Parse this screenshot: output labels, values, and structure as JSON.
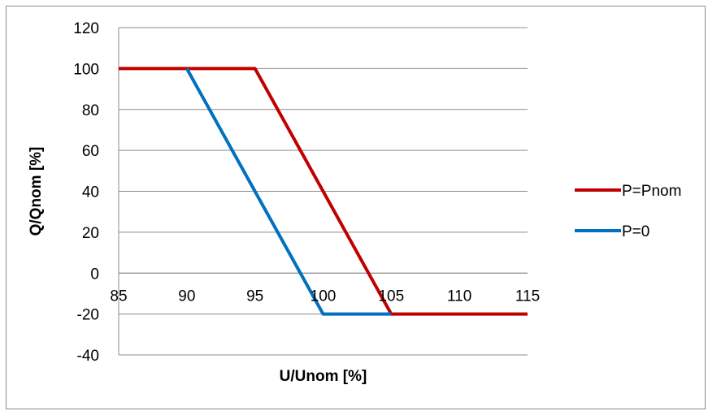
{
  "chart_data": {
    "type": "line",
    "xlabel": "U/Unom [%]",
    "ylabel": "Q/Qnom [%]",
    "xlim": [
      85,
      115
    ],
    "ylim": [
      -40,
      120
    ],
    "x_ticks": [
      "85",
      "90",
      "95",
      "100",
      "105",
      "110",
      "115"
    ],
    "y_ticks": [
      "120",
      "100",
      "80",
      "60",
      "40",
      "20",
      "0",
      "-20",
      "-40"
    ],
    "grid": "horizontal",
    "legend_position": "right",
    "series": [
      {
        "name": "P=Pnom",
        "color": "#c00000",
        "x": [
          85,
          95,
          105,
          115
        ],
        "y": [
          100,
          100,
          -20,
          -20
        ]
      },
      {
        "name": "P=0",
        "color": "#0070c0",
        "x": [
          90,
          100,
          105
        ],
        "y": [
          100,
          -20,
          -20
        ]
      }
    ]
  }
}
